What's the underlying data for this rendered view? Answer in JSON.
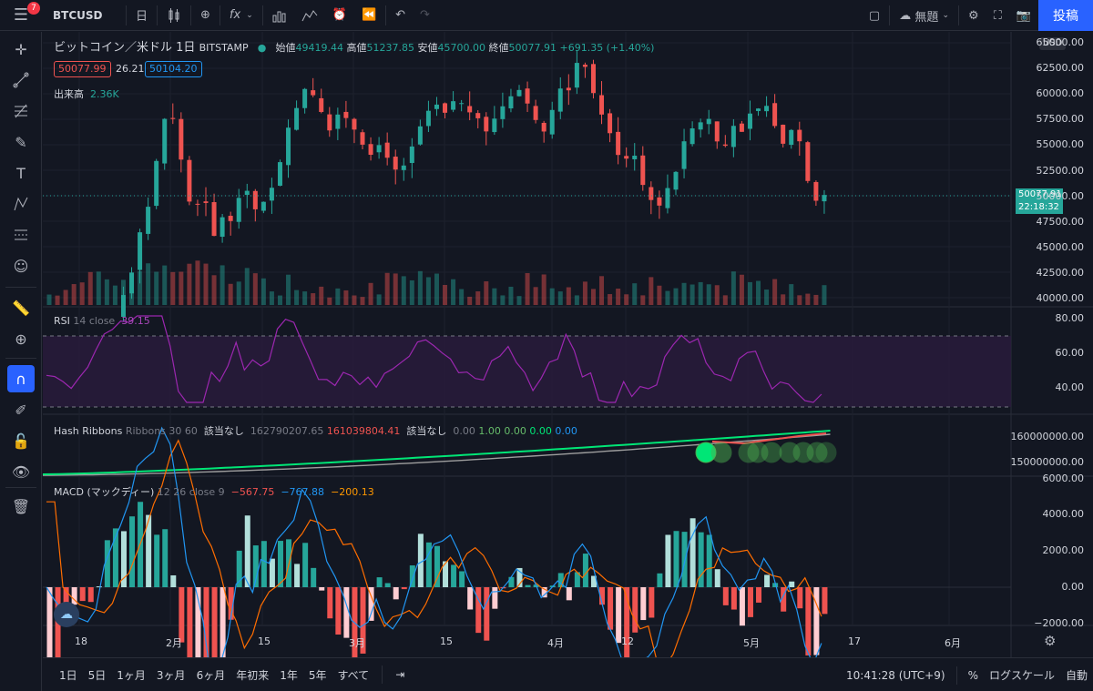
{
  "topbar": {
    "menu_badge": "7",
    "symbol": "BTCUSD",
    "interval": "日",
    "fx_label": "fx",
    "layout_name": "無題",
    "publish_label": "投稿"
  },
  "legend": {
    "title": "ビットコイン／米ドル",
    "interval": "1日",
    "exchange": "BITSTAMP",
    "open_label": "始値",
    "open": "49419.44",
    "high_label": "高値",
    "high": "51237.85",
    "low_label": "安値",
    "low": "45700.00",
    "close_label": "終値",
    "close": "50077.91",
    "change": "+691.35 (+1.40%)",
    "bid": "50077.99",
    "spread": "26.21",
    "ask": "50104.20",
    "volume_label": "出来高",
    "volume": "2.36K"
  },
  "currency_btn": "USD",
  "price_axis": [
    "65000.00",
    "62500.00",
    "60000.00",
    "57500.00",
    "55000.00",
    "52500.00",
    "50000.00",
    "47500.00",
    "45000.00",
    "42500.00",
    "40000.00"
  ],
  "last_price": "50077.91",
  "countdown": "22:18:32",
  "rsi": {
    "name": "RSI",
    "params": "14 close",
    "value": "39.15",
    "axis": [
      "80.00",
      "60.00",
      "40.00"
    ]
  },
  "hash_ribbons": {
    "name": "Hash Ribbons",
    "params": "Ribbons 30 60",
    "v1": "該当なし",
    "v2": "162790207.65",
    "v3": "161039804.41",
    "v4": "該当なし",
    "v5": "0.00",
    "v6": "1.00",
    "v7": "0.00",
    "v8": "0.00",
    "v9": "0.00",
    "axis": [
      "160000000.00",
      "150000000.00"
    ]
  },
  "macd": {
    "name": "MACD (マックディー)",
    "params": "12 26 close 9",
    "hist": "−567.75",
    "macd": "−767.88",
    "signal": "−200.13",
    "axis": [
      "6000.00",
      "4000.00",
      "2000.00",
      "0.00",
      "−2000.00"
    ]
  },
  "time_axis": [
    "18",
    "2月",
    "15",
    "3月",
    "15",
    "4月",
    "12",
    "5月",
    "17",
    "6月"
  ],
  "bottombar": {
    "ranges": [
      "1日",
      "5日",
      "1ヶ月",
      "3ヶ月",
      "6ヶ月",
      "年初来",
      "1年",
      "5年",
      "すべて"
    ],
    "clock": "10:41:28 (UTC+9)",
    "percent": "%",
    "log": "ログスケール",
    "auto": "自動"
  },
  "colors": {
    "up": "#26a69a",
    "down": "#ef5350",
    "rsi": "#9c27b0",
    "accent": "#2962ff"
  }
}
